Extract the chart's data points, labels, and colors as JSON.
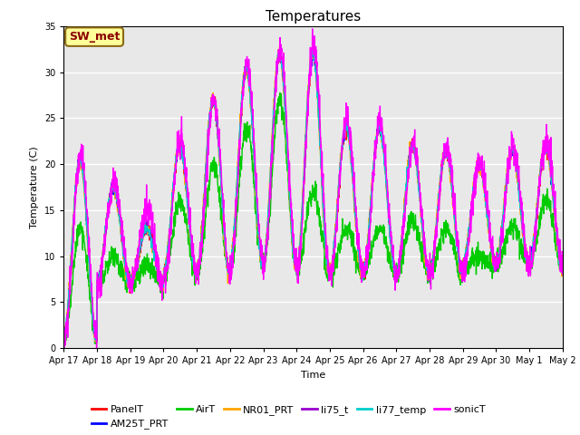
{
  "title": "Temperatures",
  "xlabel": "Time",
  "ylabel": "Temperature (C)",
  "ylim": [
    0,
    35
  ],
  "yticks": [
    0,
    5,
    10,
    15,
    20,
    25,
    30,
    35
  ],
  "annotation_text": "SW_met",
  "annotation_color": "#8B0000",
  "annotation_bg": "#FFFF99",
  "annotation_border": "#8B6914",
  "plot_bg": "#E8E8E8",
  "series": [
    {
      "name": "PanelT",
      "color": "#FF0000",
      "lw": 1.0
    },
    {
      "name": "AM25T_PRT",
      "color": "#0000FF",
      "lw": 1.0
    },
    {
      "name": "AirT",
      "color": "#00CC00",
      "lw": 1.0
    },
    {
      "name": "NR01_PRT",
      "color": "#FFA500",
      "lw": 1.0
    },
    {
      "name": "li75_t",
      "color": "#9900CC",
      "lw": 1.0
    },
    {
      "name": "li77_temp",
      "color": "#00CCCC",
      "lw": 1.0
    },
    {
      "name": "sonicT",
      "color": "#FF00FF",
      "lw": 1.0
    }
  ],
  "tick_labels": [
    "Apr 17",
    "Apr 18",
    "Apr 19",
    "Apr 20",
    "Apr 21",
    "Apr 22",
    "Apr 23",
    "Apr 24",
    "Apr 25",
    "Apr 26",
    "Apr 27",
    "Apr 28",
    "Apr 29",
    "Apr 30",
    "May 1",
    "May 2"
  ],
  "n_days": 15,
  "ppd": 144,
  "seed": 12345
}
